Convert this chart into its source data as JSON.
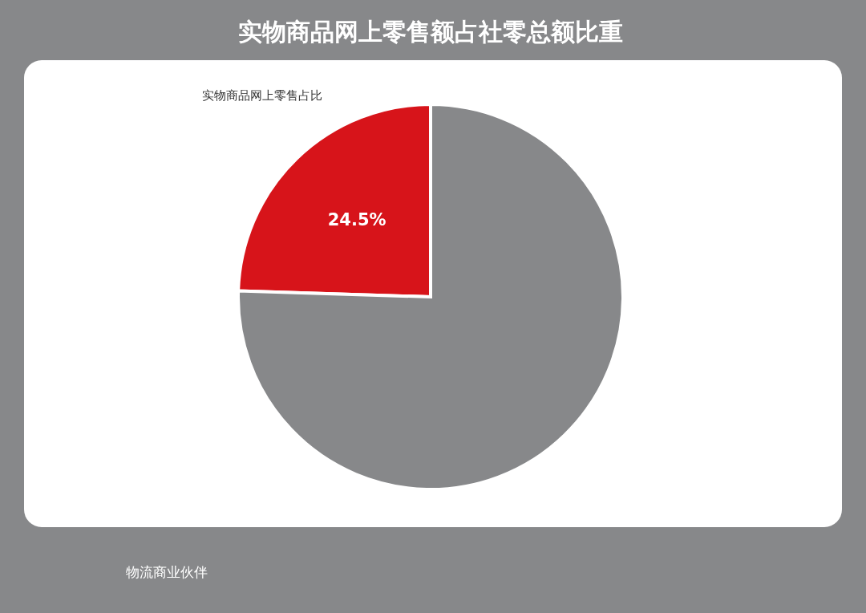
{
  "chart_data": {
    "type": "pie",
    "title": "实物商品网上零售额占社零总额比重",
    "categories": [
      "实物商品网上零售占比",
      null
    ],
    "values": [
      24.5,
      75.5
    ],
    "value_labels": [
      "24.5%",
      null
    ],
    "colors": [
      "#d7141a",
      "#87888a"
    ],
    "legend": false,
    "annotations": [
      "物流商业伙伴"
    ]
  }
}
